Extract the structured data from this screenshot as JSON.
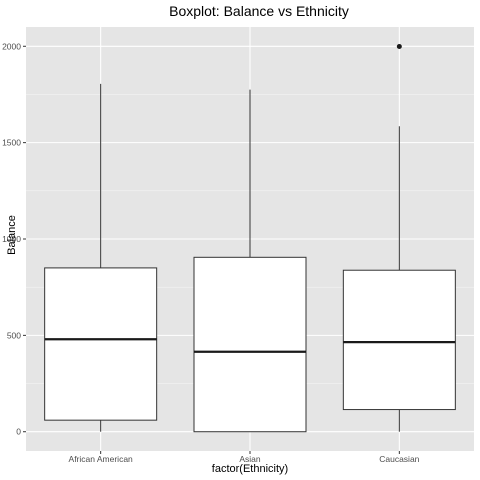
{
  "chart_data": {
    "type": "boxplot",
    "title": "Boxplot: Balance vs Ethnicity",
    "xlabel": "factor(Ethnicity)",
    "ylabel": "Balance",
    "categories": [
      "African American",
      "Asian",
      "Caucasian"
    ],
    "boxes": [
      {
        "category": "African American",
        "whisker_low": 0,
        "q1": 60,
        "median": 480,
        "q3": 850,
        "whisker_high": 1805,
        "outliers": []
      },
      {
        "category": "Asian",
        "whisker_low": 0,
        "q1": 0,
        "median": 415,
        "q3": 905,
        "whisker_high": 1775,
        "outliers": []
      },
      {
        "category": "Caucasian",
        "whisker_low": 0,
        "q1": 115,
        "median": 465,
        "q3": 838,
        "whisker_high": 1585,
        "outliers": [
          1999
        ]
      }
    ],
    "yticks": [
      0,
      500,
      1000,
      1500,
      2000
    ],
    "ylim": [
      -100,
      2100
    ],
    "grid": true,
    "legend": "none",
    "colors": {
      "panel_bg": "#e5e5e5",
      "grid_major": "#ffffff",
      "box_fill": "#ffffff",
      "box_stroke": "#333333",
      "median": "#1a1a1a",
      "outlier": "#1a1a1a"
    }
  }
}
